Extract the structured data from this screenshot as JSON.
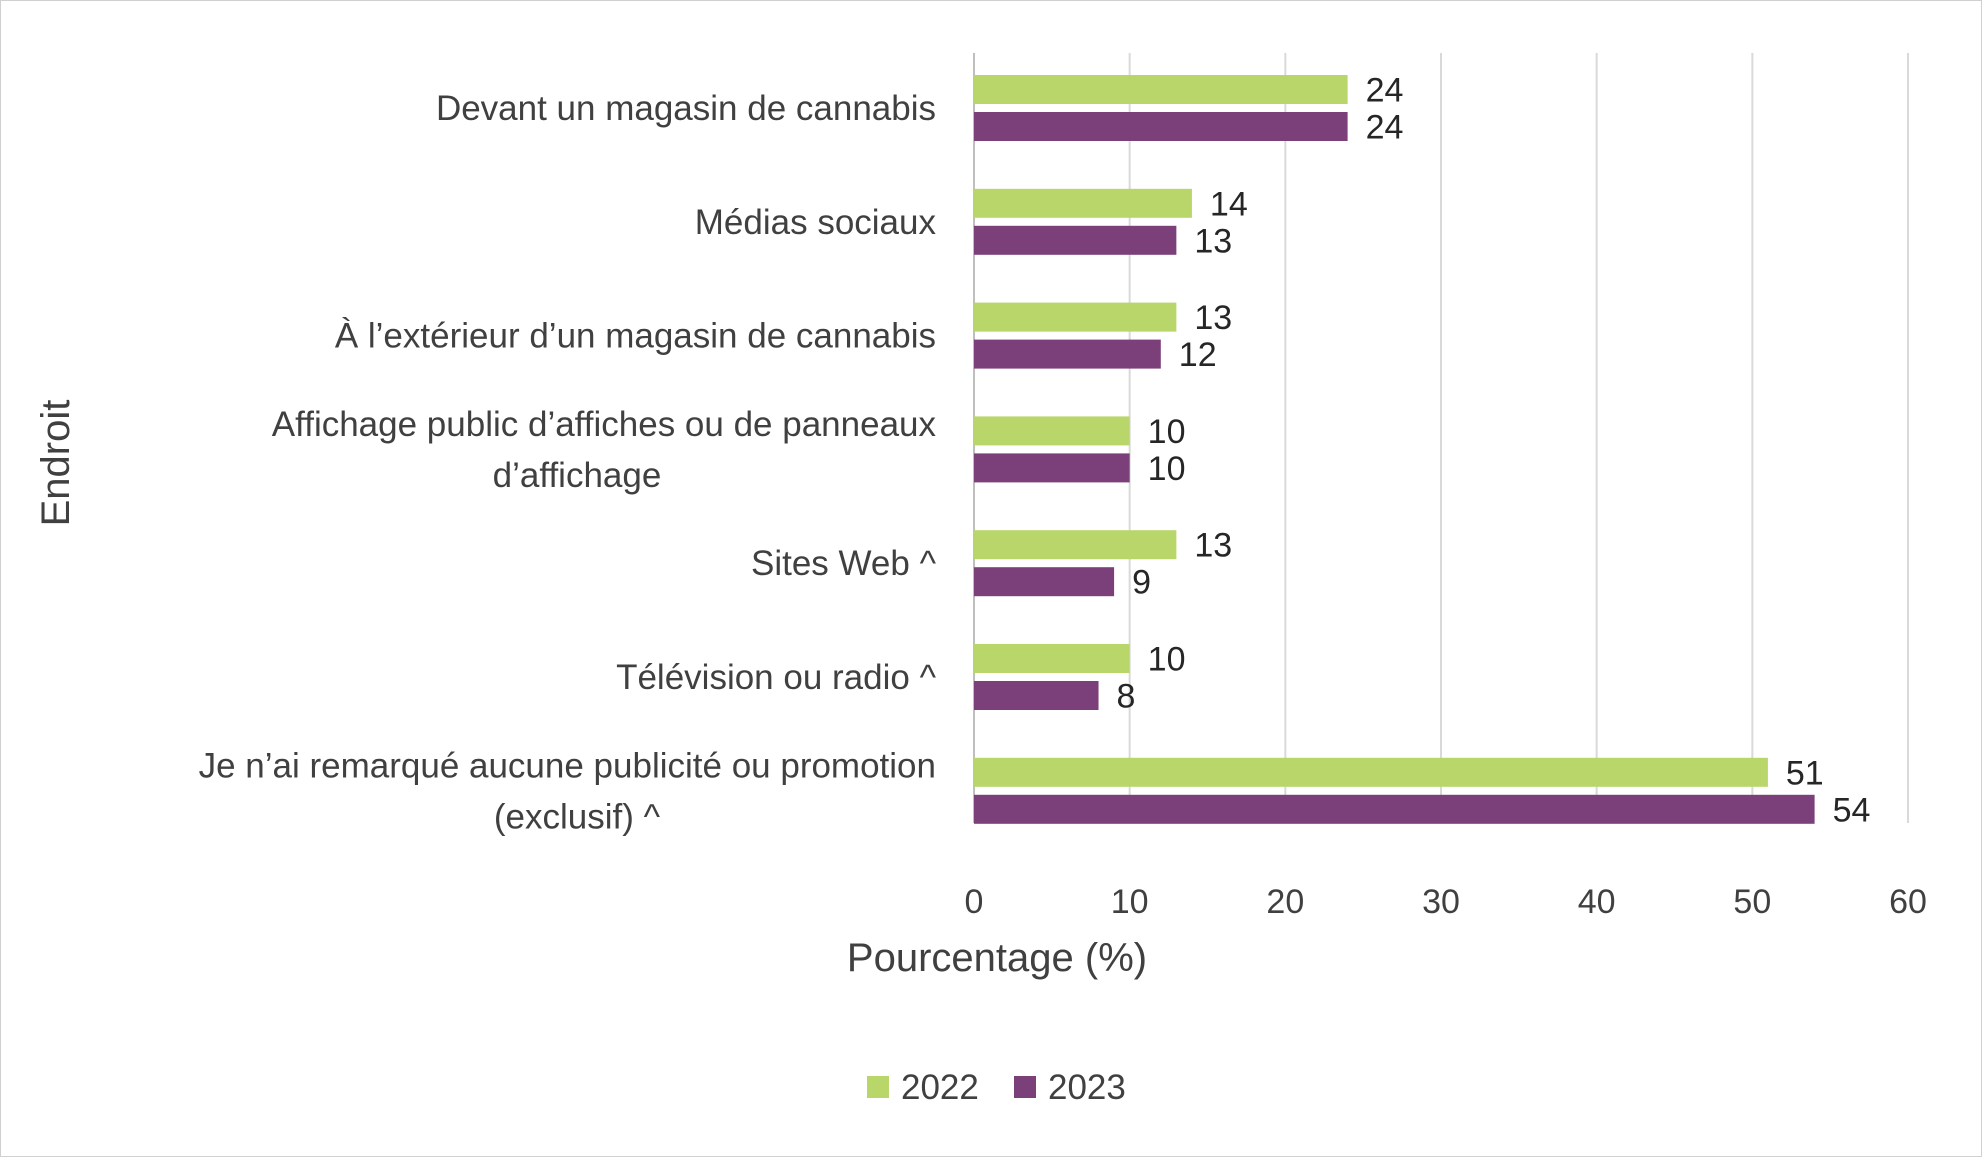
{
  "chart_data": {
    "type": "bar",
    "orientation": "horizontal",
    "title": "",
    "xlabel": "Pourcentage (%)",
    "ylabel": "Endroit",
    "xlim": [
      0,
      60
    ],
    "xticks": [
      "0",
      "10",
      "20",
      "30",
      "40",
      "50",
      "60"
    ],
    "grid": true,
    "legend_position": "bottom",
    "categories": [
      [
        "Devant un magasin de cannabis"
      ],
      [
        "Médias sociaux"
      ],
      [
        "À l’extérieur d’un magasin de cannabis"
      ],
      [
        "Affichage public d’affiches ou de panneaux",
        "d’affichage"
      ],
      [
        "Sites Web ^"
      ],
      [
        "Télévision ou radio ^"
      ],
      [
        "Je n’ai remarqué aucune publicité ou promotion",
        "(exclusif) ^"
      ]
    ],
    "series": [
      {
        "name": "2022",
        "color": "#b9d66b",
        "values": [
          24,
          14,
          13,
          10,
          13,
          10,
          51
        ]
      },
      {
        "name": "2023",
        "color": "#7b4079",
        "values": [
          24,
          13,
          12,
          10,
          9,
          8,
          54
        ]
      }
    ]
  }
}
